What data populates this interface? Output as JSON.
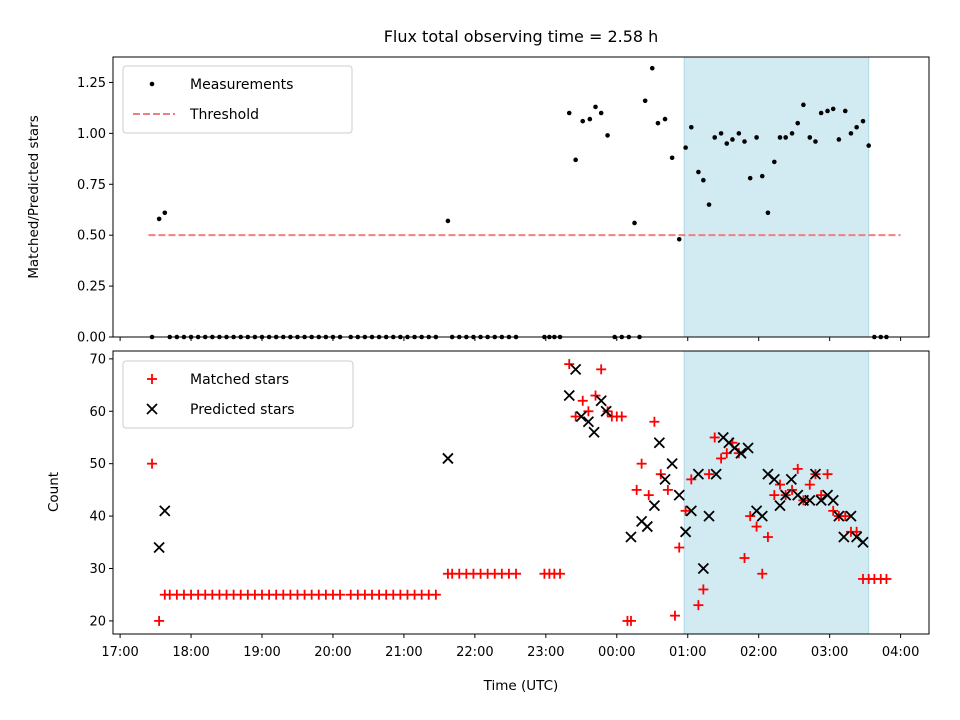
{
  "chart_data": [
    {
      "type": "scatter",
      "title": "Flux total observing time = 2.58 h",
      "xlabel": "",
      "ylabel": "Matched/Predicted stars",
      "xlim_hours": [
        16.9,
        28.4
      ],
      "ylim": [
        0,
        1.375
      ],
      "yticks": [
        0,
        0.25,
        0.5,
        0.75,
        1.0,
        1.25
      ],
      "ytick_labels": [
        "0.00",
        "0.25",
        "0.50",
        "0.75",
        "1.00",
        "1.25"
      ],
      "shaded_span_hours": [
        24.95,
        27.55
      ],
      "legend": [
        "Measurements",
        "Threshold"
      ],
      "series": [
        {
          "name": "Measurements",
          "x_hours": [
            17.45,
            17.55,
            17.63,
            17.7,
            17.8,
            17.9,
            18.0,
            18.1,
            18.2,
            18.3,
            18.4,
            18.5,
            18.6,
            18.7,
            18.8,
            18.9,
            19.0,
            19.1,
            19.2,
            19.3,
            19.4,
            19.5,
            19.6,
            19.7,
            19.8,
            19.9,
            20.0,
            20.1,
            20.25,
            20.35,
            20.45,
            20.55,
            20.65,
            20.75,
            20.85,
            20.95,
            21.05,
            21.15,
            21.25,
            21.35,
            21.45,
            21.62,
            21.68,
            21.78,
            21.88,
            21.98,
            22.08,
            22.18,
            22.28,
            22.38,
            22.48,
            22.58,
            22.98,
            23.05,
            23.12,
            23.2,
            23.33,
            23.42,
            23.52,
            23.62,
            23.7,
            23.78,
            23.87,
            23.97,
            24.07,
            24.17,
            24.25,
            24.32,
            24.4,
            24.5,
            24.58,
            24.68,
            24.78,
            24.88,
            24.97,
            25.05,
            25.15,
            25.22,
            25.3,
            25.38,
            25.47,
            25.55,
            25.63,
            25.72,
            25.8,
            25.88,
            25.97,
            26.05,
            26.13,
            26.22,
            26.3,
            26.38,
            26.47,
            26.55,
            26.63,
            26.72,
            26.8,
            26.88,
            26.97,
            27.05,
            27.13,
            27.22,
            27.3,
            27.38,
            27.47,
            27.55,
            27.63,
            27.72,
            27.8
          ],
          "y": [
            0,
            0.58,
            0.61,
            0,
            0,
            0,
            0,
            0,
            0,
            0,
            0,
            0,
            0,
            0,
            0,
            0,
            0,
            0,
            0,
            0,
            0,
            0,
            0,
            0,
            0,
            0,
            0,
            0,
            0,
            0,
            0,
            0,
            0,
            0,
            0,
            0,
            0,
            0,
            0,
            0,
            0,
            0.57,
            0,
            0,
            0,
            0,
            0,
            0,
            0,
            0,
            0,
            0,
            0,
            0,
            0,
            0,
            1.1,
            0.87,
            1.06,
            1.07,
            1.13,
            1.1,
            0.99,
            0,
            0,
            0,
            0.56,
            0,
            1.16,
            1.32,
            1.05,
            1.07,
            0.88,
            0.48,
            0.93,
            1.03,
            0.81,
            0.77,
            0.65,
            0.98,
            1.0,
            0.95,
            0.97,
            1.0,
            0.96,
            0.78,
            0.98,
            0.79,
            0.61,
            0.86,
            0.98,
            0.98,
            1.0,
            1.05,
            1.14,
            0.98,
            0.96,
            1.1,
            1.11,
            1.12,
            0.97,
            1.11,
            1.0,
            1.03,
            1.06,
            0.94,
            0,
            0,
            0
          ]
        },
        {
          "name": "Threshold",
          "x_hours": [
            17.4,
            28.0
          ],
          "y": [
            0.5,
            0.5
          ]
        }
      ]
    },
    {
      "type": "scatter",
      "title": "",
      "xlabel": "Time (UTC)",
      "ylabel": "Count",
      "xlim_hours": [
        16.9,
        28.4
      ],
      "ylim": [
        17.5,
        71.5
      ],
      "yticks": [
        20,
        30,
        40,
        50,
        60,
        70
      ],
      "ytick_labels": [
        "20",
        "30",
        "40",
        "50",
        "60",
        "70"
      ],
      "xticks_hours": [
        17,
        18,
        19,
        20,
        21,
        22,
        23,
        24,
        25,
        26,
        27,
        28
      ],
      "xtick_labels": [
        "17:00",
        "18:00",
        "19:00",
        "20:00",
        "21:00",
        "22:00",
        "23:00",
        "00:00",
        "01:00",
        "02:00",
        "03:00",
        "04:00"
      ],
      "shaded_span_hours": [
        24.95,
        27.55
      ],
      "legend": [
        "Matched stars",
        "Predicted stars"
      ],
      "series": [
        {
          "name": "Matched stars",
          "x_hours": [
            17.45,
            17.55,
            17.63,
            17.7,
            17.8,
            17.9,
            18.0,
            18.1,
            18.2,
            18.3,
            18.4,
            18.5,
            18.6,
            18.7,
            18.8,
            18.9,
            19.0,
            19.1,
            19.2,
            19.3,
            19.4,
            19.5,
            19.6,
            19.7,
            19.8,
            19.9,
            20.0,
            20.1,
            20.25,
            20.35,
            20.45,
            20.55,
            20.65,
            20.75,
            20.85,
            20.95,
            21.05,
            21.15,
            21.25,
            21.35,
            21.45,
            21.62,
            21.68,
            21.78,
            21.88,
            21.98,
            22.08,
            22.18,
            22.28,
            22.38,
            22.48,
            22.58,
            22.98,
            23.05,
            23.12,
            23.2,
            23.33,
            23.42,
            23.52,
            23.6,
            23.7,
            23.78,
            23.87,
            23.93,
            24.0,
            24.07,
            24.15,
            24.2,
            24.28,
            24.35,
            24.45,
            24.53,
            24.62,
            24.72,
            24.82,
            24.88,
            24.97,
            25.05,
            25.15,
            25.22,
            25.3,
            25.38,
            25.47,
            25.55,
            25.63,
            25.72,
            25.8,
            25.88,
            25.97,
            26.05,
            26.13,
            26.22,
            26.3,
            26.38,
            26.47,
            26.55,
            26.63,
            26.72,
            26.8,
            26.88,
            26.97,
            27.05,
            27.13,
            27.22,
            27.3,
            27.38,
            27.47,
            27.55,
            27.63,
            27.72,
            27.8
          ],
          "y": [
            50,
            20,
            25,
            25,
            25,
            25,
            25,
            25,
            25,
            25,
            25,
            25,
            25,
            25,
            25,
            25,
            25,
            25,
            25,
            25,
            25,
            25,
            25,
            25,
            25,
            25,
            25,
            25,
            25,
            25,
            25,
            25,
            25,
            25,
            25,
            25,
            25,
            25,
            25,
            25,
            25,
            29,
            29,
            29,
            29,
            29,
            29,
            29,
            29,
            29,
            29,
            29,
            29,
            29,
            29,
            29,
            69,
            59,
            62,
            60,
            63,
            68,
            60,
            59,
            59,
            59,
            20,
            20,
            45,
            50,
            44,
            58,
            48,
            45,
            21,
            34,
            41,
            47,
            23,
            26,
            48,
            55,
            51,
            52,
            54,
            52,
            32,
            40,
            38,
            29,
            36,
            44,
            46,
            44,
            45,
            49,
            43,
            46,
            48,
            44,
            48,
            41,
            40,
            40,
            37,
            37,
            28,
            28,
            28,
            28,
            28
          ]
        },
        {
          "name": "Predicted stars",
          "x_hours": [
            17.55,
            17.63,
            21.62,
            23.33,
            23.42,
            23.5,
            23.6,
            23.68,
            23.78,
            23.85,
            24.2,
            24.35,
            24.43,
            24.53,
            24.6,
            24.68,
            24.78,
            24.88,
            24.97,
            25.05,
            25.15,
            25.22,
            25.3,
            25.4,
            25.5,
            25.58,
            25.66,
            25.75,
            25.85,
            25.97,
            26.05,
            26.13,
            26.22,
            26.3,
            26.38,
            26.46,
            26.55,
            26.63,
            26.72,
            26.8,
            26.88,
            26.97,
            27.05,
            27.13,
            27.2,
            27.3,
            27.38,
            27.47
          ],
          "y": [
            34,
            41,
            51,
            63,
            68,
            59,
            58,
            56,
            62,
            60,
            36,
            39,
            38,
            42,
            54,
            47,
            50,
            44,
            37,
            41,
            48,
            30,
            40,
            48,
            55,
            54,
            53,
            52,
            53,
            41,
            40,
            48,
            47,
            42,
            44,
            47,
            44,
            43,
            43,
            48,
            43,
            44,
            43,
            40,
            36,
            40,
            36,
            35
          ]
        }
      ]
    }
  ],
  "colors": {
    "measurements": "#000000",
    "threshold": "#f08080",
    "matched": "#ff0000",
    "predicted": "#000000",
    "shade": "#add8e6"
  },
  "labels": {
    "title": "Flux total observing time = 2.58 h",
    "top_ylabel": "Matched/Predicted stars",
    "bottom_ylabel": "Count",
    "xlabel": "Time (UTC)",
    "legend_measurements": "Measurements",
    "legend_threshold": "Threshold",
    "legend_matched": "Matched stars",
    "legend_predicted": "Predicted stars"
  }
}
